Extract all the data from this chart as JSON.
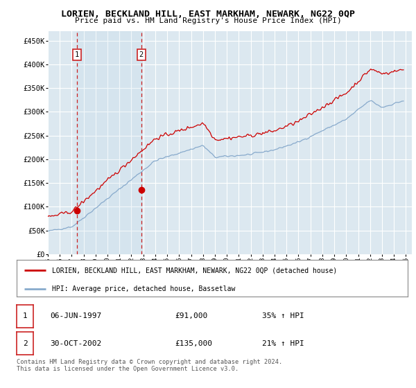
{
  "title": "LORIEN, BECKLAND HILL, EAST MARKHAM, NEWARK, NG22 0QP",
  "subtitle": "Price paid vs. HM Land Registry's House Price Index (HPI)",
  "ylabel_ticks": [
    0,
    50000,
    100000,
    150000,
    200000,
    250000,
    300000,
    350000,
    400000,
    450000
  ],
  "ylim": [
    0,
    470000
  ],
  "xlim_start": 1995.0,
  "xlim_end": 2025.5,
  "plot_bg_color": "#dce8f0",
  "grid_color": "#ffffff",
  "red_line_color": "#cc0000",
  "blue_line_color": "#88aacc",
  "ann1_x": 1997.44,
  "ann1_y": 91000,
  "ann1_label": "1",
  "ann1_date": "06-JUN-1997",
  "ann1_price": "£91,000",
  "ann1_hpi": "35% ↑ HPI",
  "ann2_x": 2002.83,
  "ann2_y": 135000,
  "ann2_label": "2",
  "ann2_date": "30-OCT-2002",
  "ann2_price": "£135,000",
  "ann2_hpi": "21% ↑ HPI",
  "legend_line1": "LORIEN, BECKLAND HILL, EAST MARKHAM, NEWARK, NG22 0QP (detached house)",
  "legend_line2": "HPI: Average price, detached house, Bassetlaw",
  "footer": "Contains HM Land Registry data © Crown copyright and database right 2024.\nThis data is licensed under the Open Government Licence v3.0.",
  "xticks": [
    1995,
    1996,
    1997,
    1998,
    1999,
    2000,
    2001,
    2002,
    2003,
    2004,
    2005,
    2006,
    2007,
    2008,
    2009,
    2010,
    2011,
    2012,
    2013,
    2014,
    2015,
    2016,
    2017,
    2018,
    2019,
    2020,
    2021,
    2022,
    2023,
    2024,
    2025
  ]
}
